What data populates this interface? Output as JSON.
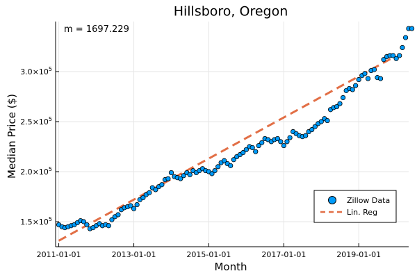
{
  "chart_data": {
    "type": "scatter",
    "title": "Hillsboro, Oregon",
    "xlabel": "Month",
    "ylabel": "Median Price ($)",
    "annotation": "m = 1697.229",
    "x_range": [
      "2010-12-01",
      "2020-05-01"
    ],
    "ylim": [
      125000,
      350000
    ],
    "x_ticks": [
      "2011-01-01",
      "2013-01-01",
      "2015-01-01",
      "2017-01-01",
      "2019-01-01"
    ],
    "y_ticks": [
      {
        "value": 150000,
        "mantissa": "1.5",
        "exp": "5"
      },
      {
        "value": 200000,
        "mantissa": "2.0",
        "exp": "5"
      },
      {
        "value": 250000,
        "mantissa": "2.5",
        "exp": "5"
      },
      {
        "value": 300000,
        "mantissa": "3.0",
        "exp": "5"
      }
    ],
    "y_tick_base": "×10",
    "grid": true,
    "legend_position": "bottom-right",
    "series": [
      {
        "name": "Zillow Data",
        "kind": "scatter",
        "color": "#009af9",
        "x_start": "2011-01-01",
        "x_step": "1 month",
        "values": [
          147000,
          145000,
          144000,
          145000,
          146000,
          147000,
          149000,
          151000,
          150000,
          147000,
          143000,
          144000,
          146000,
          148000,
          146000,
          147000,
          146000,
          152000,
          155000,
          157000,
          162000,
          164000,
          165000,
          166000,
          163000,
          167000,
          172000,
          174000,
          177000,
          179000,
          184000,
          182000,
          185000,
          187000,
          192000,
          193000,
          199000,
          195000,
          194000,
          193000,
          196000,
          199000,
          197000,
          201000,
          199000,
          201000,
          203000,
          201000,
          200000,
          198000,
          201000,
          205000,
          209000,
          211000,
          208000,
          206000,
          212000,
          215000,
          217000,
          219000,
          222000,
          225000,
          224000,
          220000,
          226000,
          229000,
          233000,
          232000,
          230000,
          232000,
          233000,
          230000,
          226000,
          230000,
          234000,
          240000,
          238000,
          236000,
          235000,
          236000,
          240000,
          242000,
          245000,
          248000,
          250000,
          253000,
          251000,
          262000,
          264000,
          265000,
          268000,
          274000,
          281000,
          283000,
          282000,
          286000,
          292000,
          296000,
          298000,
          293000,
          301000,
          302000,
          294000,
          293000,
          312000,
          315000,
          316000,
          316000,
          313000,
          316000,
          324000,
          334000,
          343000,
          343000
        ]
      },
      {
        "name": "Lin. Reg",
        "kind": "line",
        "style": "dashed",
        "color": "#e26f46",
        "x": [
          "2011-01-01",
          "2019-12-01"
        ],
        "y": [
          131000,
          314000
        ]
      }
    ]
  }
}
